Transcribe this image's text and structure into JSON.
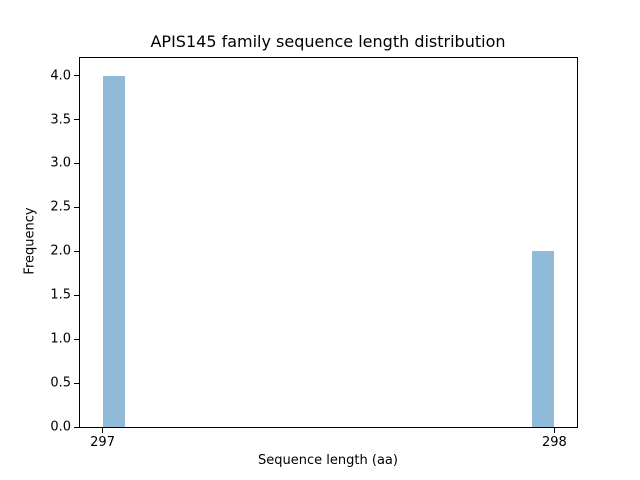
{
  "chart_data": {
    "type": "bar",
    "title": "APIS145 family sequence length distribution",
    "xlabel": "Sequence length (aa)",
    "ylabel": "Frequency",
    "categories": [
      "297",
      "298"
    ],
    "values": [
      4,
      2
    ],
    "bars": [
      {
        "x_start": 297.0,
        "x_end": 297.05,
        "frequency": 4
      },
      {
        "x_start": 297.95,
        "x_end": 298.0,
        "frequency": 2
      }
    ],
    "xlim": [
      296.95,
      298.05
    ],
    "ylim": [
      0,
      4.2
    ],
    "xticks": [
      297,
      298
    ],
    "xtick_labels": [
      "297",
      "298"
    ],
    "yticks": [
      0,
      0.5,
      1,
      1.5,
      2,
      2.5,
      3,
      3.5,
      4
    ],
    "ytick_labels": [
      "0.0",
      "0.5",
      "1.0",
      "1.5",
      "2.0",
      "2.5",
      "3.0",
      "3.5",
      "4.0"
    ],
    "bar_color": "#8FBBD9",
    "axis_color": "#000000",
    "background_color": "#FFFFFF",
    "grid": false
  }
}
